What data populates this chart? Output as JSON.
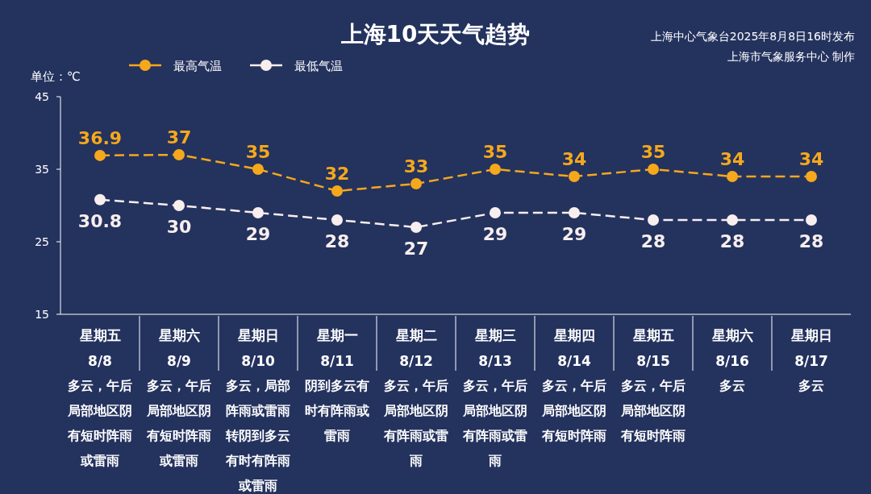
{
  "chart_data": {
    "type": "line",
    "title": "上海10天天气趋势",
    "ylabel": "单位：℃",
    "categories": [
      "星期五 8/8",
      "星期六 8/9",
      "星期日 8/10",
      "星期一 8/11",
      "星期二 8/12",
      "星期三 8/13",
      "星期四 8/14",
      "星期五 8/15",
      "星期六 8/16",
      "星期日 8/17"
    ],
    "series": [
      {
        "name": "最高气温",
        "color": "#f5a81c",
        "values": [
          36.9,
          37,
          35,
          32,
          33,
          35,
          34,
          35,
          34,
          34
        ]
      },
      {
        "name": "最低气温",
        "color": "#f7eeee",
        "values": [
          30.8,
          30,
          29,
          28,
          27,
          29,
          29,
          28,
          28,
          28
        ]
      }
    ],
    "ylim": [
      15,
      45
    ],
    "yticks": [
      15,
      25,
      35,
      45
    ],
    "grid": false,
    "legend": "top left",
    "marker": "circle",
    "line_style": "dashed",
    "data_labels": true,
    "annotations": [
      "上海中心气象台2025年8月8日16时发布",
      "上海市气象服务中心 制作",
      "多云，午后局部地区阴有短时阵雨或雷雨",
      "多云，午后局部地区阴有短时阵雨或雷雨",
      "多云，局部阵雨或雷雨转阴到多云有时有阵雨或雷雨",
      "阴到多云有时有阵雨或雷雨",
      "多云，午后局部地区阴有阵雨或雷雨",
      "多云，午后局部地区阴有阵雨或雷雨",
      "多云，午后局部地区阴有短时阵雨",
      "多云，午后局部地区阴有短时阵雨",
      "多云",
      "多云"
    ]
  }
}
